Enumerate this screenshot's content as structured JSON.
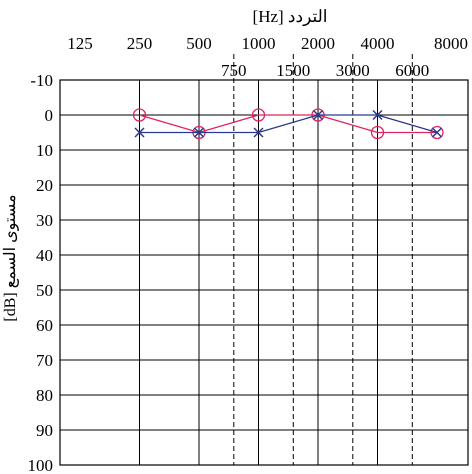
{
  "chart_data": {
    "type": "line",
    "xlabel": "التردد [Hz]",
    "ylabel": "مستوى السمع [dB]",
    "x_ticks_top": [
      "125",
      "250",
      "500",
      "1000",
      "2000",
      "4000",
      "8000"
    ],
    "x_ticks_bottom": [
      "750",
      "1500",
      "3000",
      "6000"
    ],
    "y_ticks": [
      "-10",
      "0",
      "10",
      "20",
      "30",
      "40",
      "50",
      "60",
      "70",
      "80",
      "90",
      "100"
    ],
    "ylim": [
      -10,
      100
    ],
    "y_inverted": true,
    "x_scale": "log2",
    "grid": true,
    "series": [
      {
        "marker": "circle",
        "color": "#e0245e",
        "points": [
          {
            "x": 250,
            "y": 0
          },
          {
            "x": 500,
            "y": 5
          },
          {
            "x": 1000,
            "y": 0
          },
          {
            "x": 2000,
            "y": 0
          },
          {
            "x": 4000,
            "y": 5
          },
          {
            "x": 8000,
            "y": 5
          }
        ]
      },
      {
        "marker": "cross",
        "color": "#2b3a8f",
        "points": [
          {
            "x": 250,
            "y": 5
          },
          {
            "x": 500,
            "y": 5
          },
          {
            "x": 1000,
            "y": 5
          },
          {
            "x": 2000,
            "y": 0
          },
          {
            "x": 4000,
            "y": 0
          },
          {
            "x": 8000,
            "y": 5
          }
        ]
      }
    ]
  }
}
